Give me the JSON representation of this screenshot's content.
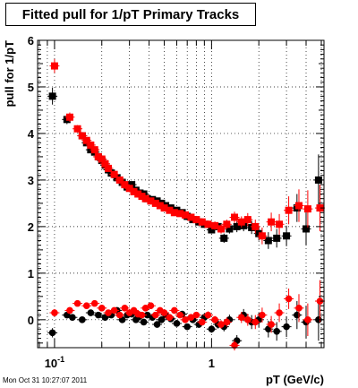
{
  "title": "Fitted pull for 1/pT  Primary Tracks",
  "timestamp": "Mon Oct 31 10:27:07 2011",
  "chart_data": {
    "type": "scatter",
    "xlabel": "pT (GeV/c)",
    "ylabel": "pull for 1/pT",
    "xscale": "log",
    "xlim": [
      0.078,
      5.2
    ],
    "ylim": [
      -0.6,
      6.0
    ],
    "yticks": [
      0,
      1,
      2,
      3,
      4,
      5,
      6
    ],
    "xticks": [
      {
        "value": 0.1,
        "label": "10",
        "sup": "-1"
      },
      {
        "value": 1,
        "label": "1",
        "sup": ""
      }
    ],
    "grid": true,
    "legend": "none",
    "series": [
      {
        "marker": "square",
        "color": "#000000",
        "x": [
          0.097,
          0.12,
          0.15,
          0.16,
          0.17,
          0.18,
          0.19,
          0.2,
          0.21,
          0.22,
          0.23,
          0.25,
          0.27,
          0.29,
          0.31,
          0.33,
          0.35,
          0.37,
          0.39,
          0.42,
          0.45,
          0.48,
          0.51,
          0.55,
          0.6,
          0.65,
          0.7,
          0.76,
          0.83,
          0.9,
          1.0,
          1.1,
          1.2,
          1.3,
          1.45,
          1.6,
          1.8,
          2.0,
          2.3,
          2.6,
          3.0,
          3.5,
          4.0,
          4.8
        ],
        "y": [
          4.8,
          4.3,
          3.95,
          3.8,
          3.65,
          3.6,
          3.5,
          3.42,
          3.32,
          3.22,
          3.15,
          3.05,
          2.95,
          2.85,
          2.9,
          2.78,
          2.72,
          2.7,
          2.6,
          2.58,
          2.55,
          2.5,
          2.45,
          2.4,
          2.35,
          2.3,
          2.22,
          2.15,
          2.1,
          2.05,
          1.93,
          2.0,
          1.75,
          1.95,
          2.0,
          2.02,
          1.98,
          1.85,
          1.7,
          1.75,
          1.8,
          2.4,
          1.95,
          3.0
        ],
        "yerr": [
          0.18,
          0.1,
          0.08,
          0.07,
          0.07,
          0.06,
          0.06,
          0.06,
          0.06,
          0.06,
          0.06,
          0.06,
          0.06,
          0.06,
          0.06,
          0.06,
          0.06,
          0.06,
          0.06,
          0.06,
          0.06,
          0.06,
          0.06,
          0.06,
          0.07,
          0.07,
          0.07,
          0.07,
          0.08,
          0.08,
          0.08,
          0.09,
          0.1,
          0.1,
          0.12,
          0.12,
          0.14,
          0.15,
          0.18,
          0.2,
          0.22,
          0.3,
          0.35,
          0.55
        ]
      },
      {
        "marker": "square",
        "color": "#ff0000",
        "x": [
          0.1,
          0.125,
          0.14,
          0.15,
          0.16,
          0.17,
          0.18,
          0.19,
          0.2,
          0.21,
          0.22,
          0.24,
          0.26,
          0.28,
          0.3,
          0.32,
          0.34,
          0.36,
          0.38,
          0.41,
          0.44,
          0.47,
          0.5,
          0.54,
          0.58,
          0.63,
          0.68,
          0.74,
          0.8,
          0.87,
          0.95,
          1.05,
          1.15,
          1.25,
          1.4,
          1.55,
          1.7,
          1.9,
          2.1,
          2.4,
          2.7,
          3.1,
          3.6,
          4.1,
          4.9
        ],
        "y": [
          5.45,
          4.35,
          4.1,
          3.95,
          3.85,
          3.75,
          3.65,
          3.5,
          3.45,
          3.35,
          3.25,
          3.12,
          3.0,
          2.9,
          2.82,
          2.75,
          2.7,
          2.65,
          2.6,
          2.55,
          2.5,
          2.45,
          2.4,
          2.35,
          2.3,
          2.28,
          2.25,
          2.2,
          2.15,
          2.1,
          2.05,
          2.02,
          1.95,
          2.05,
          2.2,
          2.1,
          2.15,
          2.0,
          1.8,
          2.1,
          2.05,
          2.35,
          2.45,
          2.38,
          2.4
        ],
        "yerr": [
          0.15,
          0.1,
          0.08,
          0.07,
          0.07,
          0.06,
          0.06,
          0.06,
          0.06,
          0.06,
          0.06,
          0.06,
          0.06,
          0.06,
          0.06,
          0.06,
          0.06,
          0.06,
          0.06,
          0.06,
          0.06,
          0.06,
          0.06,
          0.06,
          0.07,
          0.07,
          0.07,
          0.07,
          0.08,
          0.08,
          0.08,
          0.09,
          0.1,
          0.1,
          0.12,
          0.12,
          0.14,
          0.15,
          0.18,
          0.2,
          0.22,
          0.3,
          0.35,
          0.4,
          0.5
        ]
      },
      {
        "marker": "circle",
        "color": "#000000",
        "x": [
          0.097,
          0.12,
          0.13,
          0.15,
          0.17,
          0.19,
          0.21,
          0.23,
          0.25,
          0.27,
          0.29,
          0.31,
          0.33,
          0.35,
          0.37,
          0.39,
          0.42,
          0.45,
          0.48,
          0.51,
          0.55,
          0.6,
          0.65,
          0.7,
          0.76,
          0.83,
          0.9,
          1.0,
          1.1,
          1.2,
          1.3,
          1.45,
          1.6,
          1.8,
          2.0,
          2.3,
          2.6,
          3.0,
          3.5,
          4.0,
          4.8
        ],
        "y": [
          -0.28,
          0.1,
          0.05,
          0.0,
          0.15,
          0.1,
          0.05,
          0.1,
          0.2,
          0.0,
          0.1,
          0.12,
          0.0,
          0.08,
          -0.05,
          0.1,
          0.05,
          -0.1,
          0.0,
          0.1,
          0.02,
          -0.08,
          0.12,
          -0.15,
          0.0,
          -0.1,
          0.05,
          -0.2,
          -0.1,
          -0.15,
          0.0,
          -0.45,
          0.1,
          -0.05,
          0.0,
          -0.2,
          -0.25,
          -0.15,
          0.1,
          -0.05,
          0.0
        ],
        "yerr": [
          0.1,
          0.07,
          0.06,
          0.05,
          0.05,
          0.05,
          0.05,
          0.05,
          0.05,
          0.05,
          0.05,
          0.05,
          0.05,
          0.05,
          0.05,
          0.05,
          0.05,
          0.05,
          0.05,
          0.05,
          0.06,
          0.06,
          0.06,
          0.06,
          0.07,
          0.07,
          0.08,
          0.08,
          0.09,
          0.1,
          0.11,
          0.12,
          0.13,
          0.15,
          0.16,
          0.18,
          0.2,
          0.22,
          0.3,
          0.35,
          0.45
        ]
      },
      {
        "marker": "circle",
        "color": "#ff0000",
        "x": [
          0.1,
          0.125,
          0.14,
          0.16,
          0.18,
          0.2,
          0.22,
          0.24,
          0.26,
          0.28,
          0.3,
          0.32,
          0.34,
          0.36,
          0.38,
          0.41,
          0.44,
          0.47,
          0.5,
          0.54,
          0.58,
          0.63,
          0.68,
          0.74,
          0.8,
          0.87,
          0.95,
          1.05,
          1.15,
          1.25,
          1.4,
          1.55,
          1.7,
          1.9,
          2.1,
          2.4,
          2.7,
          3.1,
          3.6,
          4.1,
          4.9
        ],
        "y": [
          0.15,
          0.2,
          0.35,
          0.3,
          0.35,
          0.25,
          0.15,
          0.2,
          0.1,
          0.25,
          0.15,
          0.2,
          0.12,
          0.1,
          0.25,
          0.3,
          0.1,
          0.2,
          0.15,
          0.05,
          0.2,
          0.1,
          0.0,
          0.05,
          0.1,
          -0.05,
          0.1,
          0.0,
          -0.1,
          -0.05,
          -0.55,
          0.05,
          0.0,
          -0.05,
          0.1,
          -0.1,
          0.15,
          0.45,
          0.25,
          0.0,
          0.4
        ],
        "yerr": [
          0.08,
          0.07,
          0.06,
          0.05,
          0.05,
          0.05,
          0.05,
          0.05,
          0.05,
          0.05,
          0.05,
          0.05,
          0.05,
          0.05,
          0.05,
          0.05,
          0.05,
          0.05,
          0.05,
          0.05,
          0.06,
          0.06,
          0.06,
          0.06,
          0.07,
          0.07,
          0.08,
          0.08,
          0.09,
          0.1,
          0.11,
          0.12,
          0.13,
          0.15,
          0.16,
          0.18,
          0.2,
          0.22,
          0.3,
          0.35,
          0.45
        ]
      }
    ]
  }
}
